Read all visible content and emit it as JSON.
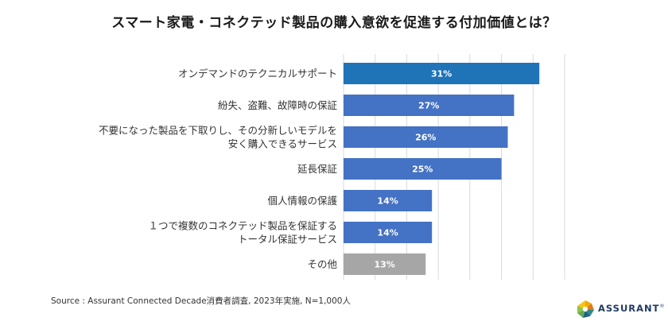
{
  "title": "スマート家電・コネクテッド製品の購入意欲を促進する付加価値とは？",
  "source": "Source : Assurant Connected Decade消費者調査, 2023年実施, N=1,000人",
  "logo": {
    "text": "ASSURANT",
    "mark": "®"
  },
  "chart_data": {
    "type": "bar",
    "orientation": "horizontal",
    "title": "スマート家電・コネクテッド製品の購入意欲を促進する付加価値とは？",
    "xlabel": "",
    "ylabel": "",
    "xlim": [
      0,
      35
    ],
    "grid": true,
    "categories": [
      [
        "オンデマンドのテクニカルサポート"
      ],
      [
        "紛失、盗難、故障時の保証"
      ],
      [
        "不要になった製品を下取りし、その分新しいモデルを",
        "安く購入できるサービス"
      ],
      [
        "延長保証"
      ],
      [
        "個人情報の保護"
      ],
      [
        "１つで複数のコネクテッド製品を保証する",
        "トータル保証サービス"
      ],
      [
        "その他"
      ]
    ],
    "values": [
      31,
      27,
      26,
      25,
      14,
      14,
      13
    ],
    "value_labels": [
      "31%",
      "27%",
      "26%",
      "25%",
      "14%",
      "14%",
      "13%"
    ],
    "colors": [
      "#1f73b7",
      "#4472c4",
      "#4472c4",
      "#4472c4",
      "#4472c4",
      "#4472c4",
      "#a6a6a6"
    ]
  }
}
